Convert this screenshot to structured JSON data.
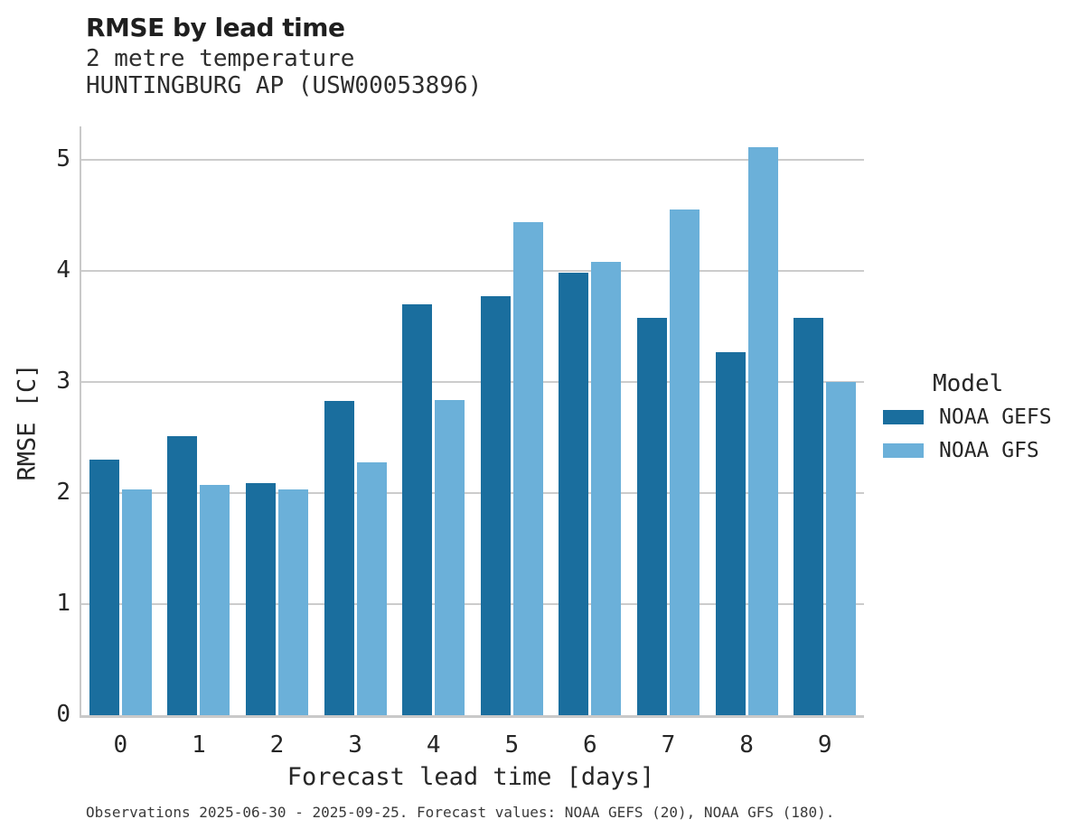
{
  "header": {
    "title": "RMSE by lead time",
    "subtitle_line1": "2 metre temperature",
    "subtitle_line2": "HUNTINGBURG AP (USW00053896)"
  },
  "caption": "Observations 2025-06-30 - 2025-09-25. Forecast values: NOAA GEFS (20), NOAA GFS (180).",
  "chart_data": {
    "type": "bar",
    "title": "RMSE by lead time",
    "subtitle": [
      "2 metre temperature",
      "HUNTINGBURG AP (USW00053896)"
    ],
    "categories": [
      "0",
      "1",
      "2",
      "3",
      "4",
      "5",
      "6",
      "7",
      "8",
      "9"
    ],
    "series": [
      {
        "name": "NOAA GEFS",
        "color": "#1a6e9e",
        "values": [
          2.3,
          2.51,
          2.09,
          2.83,
          3.7,
          3.77,
          3.98,
          3.58,
          3.27,
          3.58
        ]
      },
      {
        "name": "NOAA GFS",
        "color": "#6bb0d9",
        "values": [
          2.03,
          2.07,
          2.03,
          2.28,
          2.84,
          4.44,
          4.08,
          4.55,
          5.11,
          3.0
        ]
      }
    ],
    "xlabel": "Forecast lead time [days]",
    "ylabel": "RMSE [C]",
    "ylim": [
      0,
      5.3
    ],
    "yticks": [
      0,
      1,
      2,
      3,
      4,
      5
    ],
    "grid": true,
    "grid_color": "#cccccc",
    "axis_color": "#c9c9c9",
    "legend": {
      "title": "Model",
      "position": "right"
    }
  }
}
